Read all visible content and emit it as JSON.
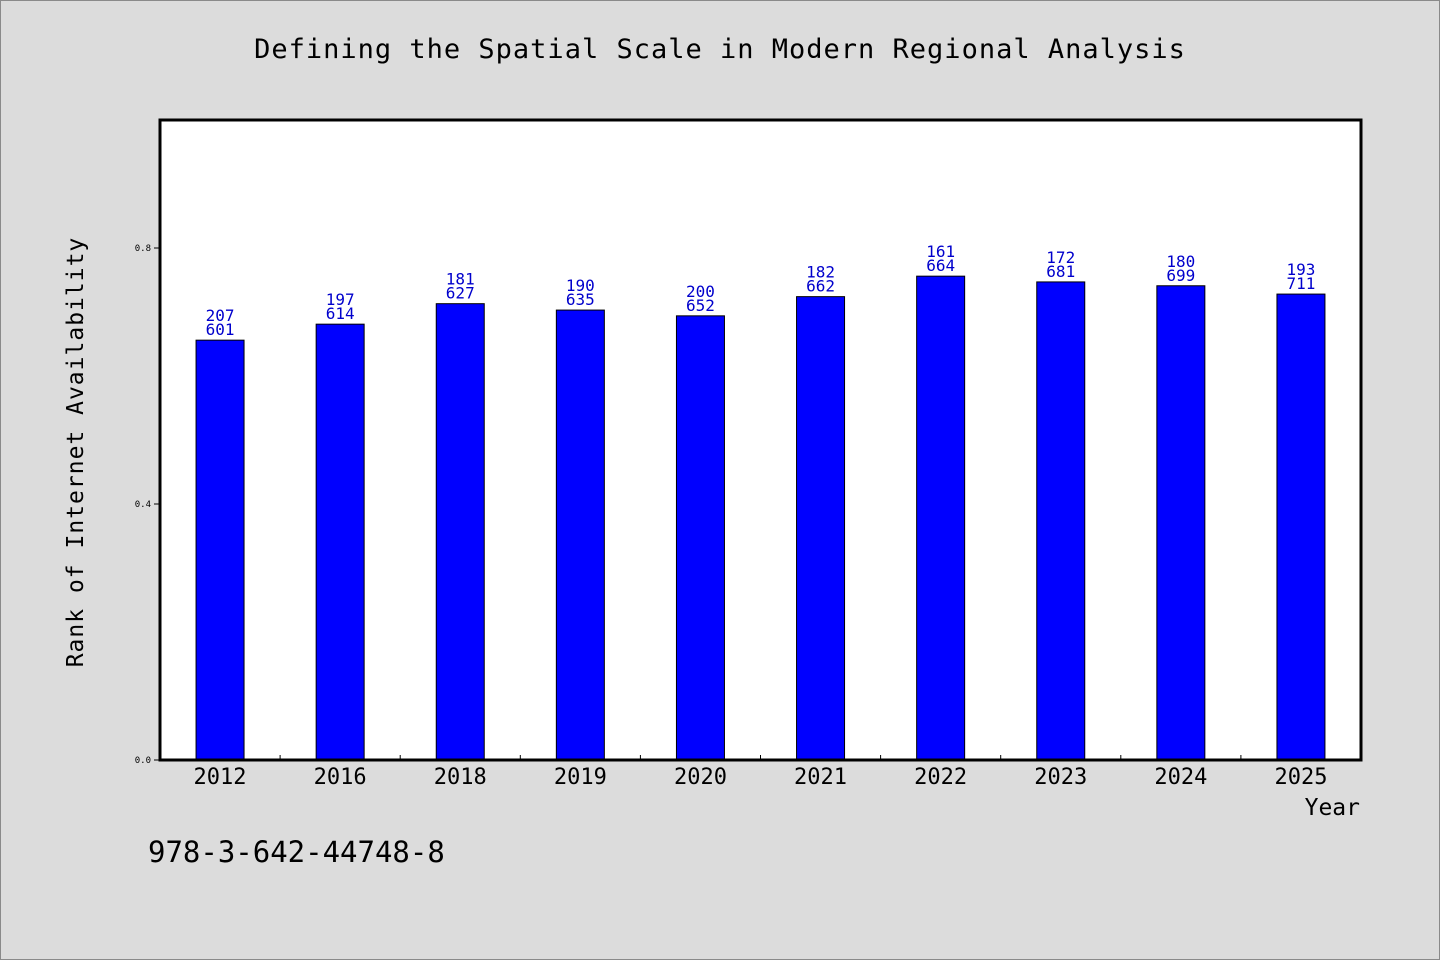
{
  "chart_data": {
    "type": "bar",
    "title": "Defining the Spatial Scale in Modern Regional Analysis",
    "xlabel": "Year",
    "ylabel": "Rank of Internet Availability",
    "categories": [
      "2012",
      "2016",
      "2018",
      "2019",
      "2020",
      "2021",
      "2022",
      "2023",
      "2024",
      "2025"
    ],
    "values": [
      0.656,
      0.681,
      0.713,
      0.703,
      0.694,
      0.724,
      0.756,
      0.747,
      0.741,
      0.728
    ],
    "labels_top": [
      "207",
      "197",
      "181",
      "190",
      "200",
      "182",
      "161",
      "172",
      "180",
      "193"
    ],
    "labels_bottom": [
      "601",
      "614",
      "627",
      "635",
      "652",
      "662",
      "664",
      "681",
      "699",
      "711"
    ],
    "yticks": [
      "0.0",
      "0.4",
      "0.8"
    ],
    "ylim": [
      0,
      1.0
    ],
    "grid": false,
    "bar_color": "#0000ff",
    "label_color": "#0000cc"
  },
  "footer": {
    "isbn": "978-3-642-44748-8"
  }
}
